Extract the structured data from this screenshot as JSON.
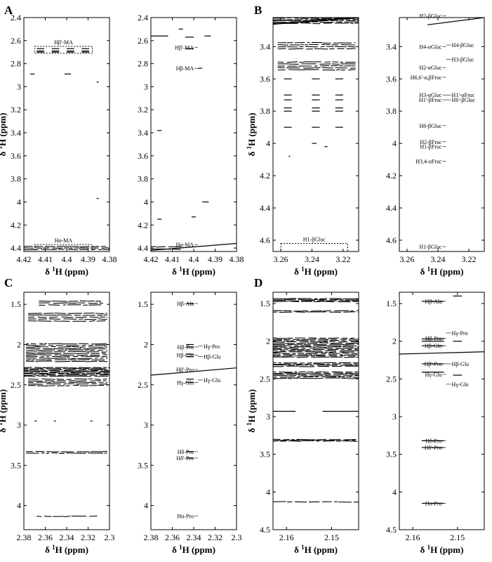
{
  "chart_data": [
    {
      "panel": "A",
      "type": "contour",
      "xlabel_text": "H (ppm)",
      "ylabel_text": "H (ppm)",
      "xlim": [
        4.42,
        4.38
      ],
      "ylim": [
        2.4,
        4.43
      ],
      "xticks": [
        "4.42",
        "4.41",
        "4.4",
        "4.39",
        "4.38"
      ],
      "yticks": [
        "2.4",
        "2.6",
        "2.8",
        "3",
        "3.2",
        "3.4",
        "3.6",
        "3.8",
        "4",
        "4.2",
        "4.4"
      ],
      "boxes": [
        {
          "label": "Hβ'-MA",
          "x": [
            4.415,
            4.388
          ],
          "y": [
            2.65,
            2.71
          ]
        },
        {
          "label": "Hα-MA",
          "x": [
            4.415,
            4.388
          ],
          "y": [
            4.37,
            4.43
          ]
        }
      ]
    },
    {
      "panel": "A2",
      "type": "annotated-spectrum",
      "xlabel_text": "H (ppm)",
      "xlim": [
        4.42,
        4.38
      ],
      "ylim": [
        2.4,
        4.43
      ],
      "xticks": [
        "4.42",
        "4.41",
        "4.4",
        "4.39",
        "4.38"
      ],
      "yticks": [
        "2.4",
        "2.6",
        "2.8",
        "3",
        "3.2",
        "3.4",
        "3.6",
        "3.8",
        "4",
        "4.2",
        "4.4"
      ],
      "annotations": [
        {
          "label": "Hβ'-MA",
          "y": 2.66
        },
        {
          "label": "Hβ-MA",
          "y": 2.84
        },
        {
          "label": "Hα-MA",
          "y": 4.37
        }
      ]
    },
    {
      "panel": "B",
      "type": "contour",
      "xlabel_text": "H (ppm)",
      "ylabel_text": "H (ppm)",
      "xlim": [
        3.265,
        3.21
      ],
      "ylim": [
        3.22,
        4.67
      ],
      "xticks": [
        "3.26",
        "3.24",
        "3.22"
      ],
      "yticks": [
        "3.4",
        "3.6",
        "3.8",
        "4",
        "4.2",
        "4.4",
        "4.6"
      ],
      "boxes": [
        {
          "label": "H1-βGluc",
          "x": [
            3.26,
            3.217
          ],
          "y": [
            4.62,
            4.67
          ]
        }
      ]
    },
    {
      "panel": "B2",
      "type": "annotated-spectrum",
      "xlabel_text": "H (ppm)",
      "xlim": [
        3.265,
        3.21
      ],
      "ylim": [
        3.22,
        4.67
      ],
      "xticks": [
        "3.26",
        "3.24",
        "3.22"
      ],
      "yticks": [
        "3.4",
        "3.6",
        "3.8",
        "4",
        "4.2",
        "4.4",
        "4.6"
      ],
      "annotations": [
        {
          "label": "H2-βGluc",
          "y": 3.21
        },
        {
          "label": "H4-αGluc",
          "y": 3.4
        },
        {
          "label": "H4-βGluc",
          "y": 3.39
        },
        {
          "label": "H3-βGluc",
          "y": 3.48
        },
        {
          "label": "H2-αGluc",
          "y": 3.53
        },
        {
          "label": "H6,6'-α,βFruc",
          "y": 3.59
        },
        {
          "label": "H3-αGluc",
          "y": 3.7
        },
        {
          "label": "H1'-αFruc",
          "y": 3.7
        },
        {
          "label": "H1'-βFruc",
          "y": 3.73
        },
        {
          "label": "H6'-βGluc",
          "y": 3.73
        },
        {
          "label": "H6-βGluc",
          "y": 3.89
        },
        {
          "label": "H2-βFruc",
          "y": 3.99
        },
        {
          "label": "H1-βFruc",
          "y": 4.02
        },
        {
          "label": "H3,4-αFruc",
          "y": 4.11
        },
        {
          "label": "H1-βGluc",
          "y": 4.64
        }
      ]
    },
    {
      "panel": "C",
      "type": "contour",
      "xlabel_text": "H (ppm)",
      "ylabel_text": "H (ppm)",
      "xlim": [
        2.38,
        2.3
      ],
      "ylim": [
        1.35,
        4.3
      ],
      "xticks": [
        "2.38",
        "2.36",
        "2.34",
        "2.32",
        "2.3"
      ],
      "yticks": [
        "1.5",
        "2",
        "2.5",
        "3",
        "3.5",
        "4"
      ]
    },
    {
      "panel": "C2",
      "type": "annotated-spectrum",
      "xlabel_text": "H (ppm)",
      "xlim": [
        2.38,
        2.3
      ],
      "ylim": [
        1.35,
        4.3
      ],
      "xticks": [
        "2.38",
        "2.36",
        "2.34",
        "2.32",
        "2.3"
      ],
      "yticks": [
        "1.5",
        "2",
        "2.5",
        "3",
        "3.5",
        "4"
      ],
      "annotations": [
        {
          "label": "Hβ-Ala",
          "y": 1.49
        },
        {
          "label": "Hβ-Pro",
          "y": 2.03
        },
        {
          "label": "Hγ-Pro",
          "y": 2.02
        },
        {
          "label": "Hβ-Gln",
          "y": 2.13
        },
        {
          "label": "Hβ-Glu",
          "y": 2.15
        },
        {
          "label": "Hβ'-Pro",
          "y": 2.31
        },
        {
          "label": "Hγ-Gln",
          "y": 2.47
        },
        {
          "label": "Hγ-Glu",
          "y": 2.44
        },
        {
          "label": "Hδ-Pro",
          "y": 3.33
        },
        {
          "label": "Hδ'-Pro",
          "y": 3.41
        },
        {
          "label": "Hα-Pro",
          "y": 4.13
        }
      ]
    },
    {
      "panel": "D",
      "type": "contour",
      "xlabel_text": "H (ppm)",
      "ylabel_text": "H (ppm)",
      "xlim": [
        2.163,
        2.144
      ],
      "ylim": [
        1.35,
        4.5
      ],
      "xticks": [
        "2.16",
        "2.15"
      ],
      "yticks": [
        "1.5",
        "2",
        "2.5",
        "3",
        "3.5",
        "4",
        "4.5"
      ]
    },
    {
      "panel": "D2",
      "type": "annotated-spectrum",
      "xlabel_text": "H (ppm)",
      "xlim": [
        2.163,
        2.144
      ],
      "ylim": [
        1.35,
        4.5
      ],
      "xticks": [
        "2.16",
        "2.15"
      ],
      "yticks": [
        "1.5",
        "2",
        "2.5",
        "3",
        "3.5",
        "4",
        "4.5"
      ],
      "annotations": [
        {
          "label": "Hβ-Ala",
          "y": 1.47
        },
        {
          "label": "Hγ-Pro",
          "y": 1.89
        },
        {
          "label": "Hβ-Pro",
          "y": 1.96
        },
        {
          "label": "Hβ-Gln",
          "y": 2.06
        },
        {
          "label": "Hβ'-Pro",
          "y": 2.3
        },
        {
          "label": "Hβ-Glu",
          "y": 2.3
        },
        {
          "label": "Hγ-Glu",
          "y": 2.44
        },
        {
          "label": "Hγ-Gln",
          "y": 2.57
        },
        {
          "label": "Hδ-Pro",
          "y": 3.32
        },
        {
          "label": "Hδ'-Pro",
          "y": 3.41
        },
        {
          "label": "Hα-Pro",
          "y": 4.15
        }
      ]
    }
  ],
  "labels": {
    "panel_a": "A",
    "panel_b": "B",
    "panel_c": "C",
    "panel_d": "D",
    "delta": "δ",
    "superscript_one": "1"
  }
}
